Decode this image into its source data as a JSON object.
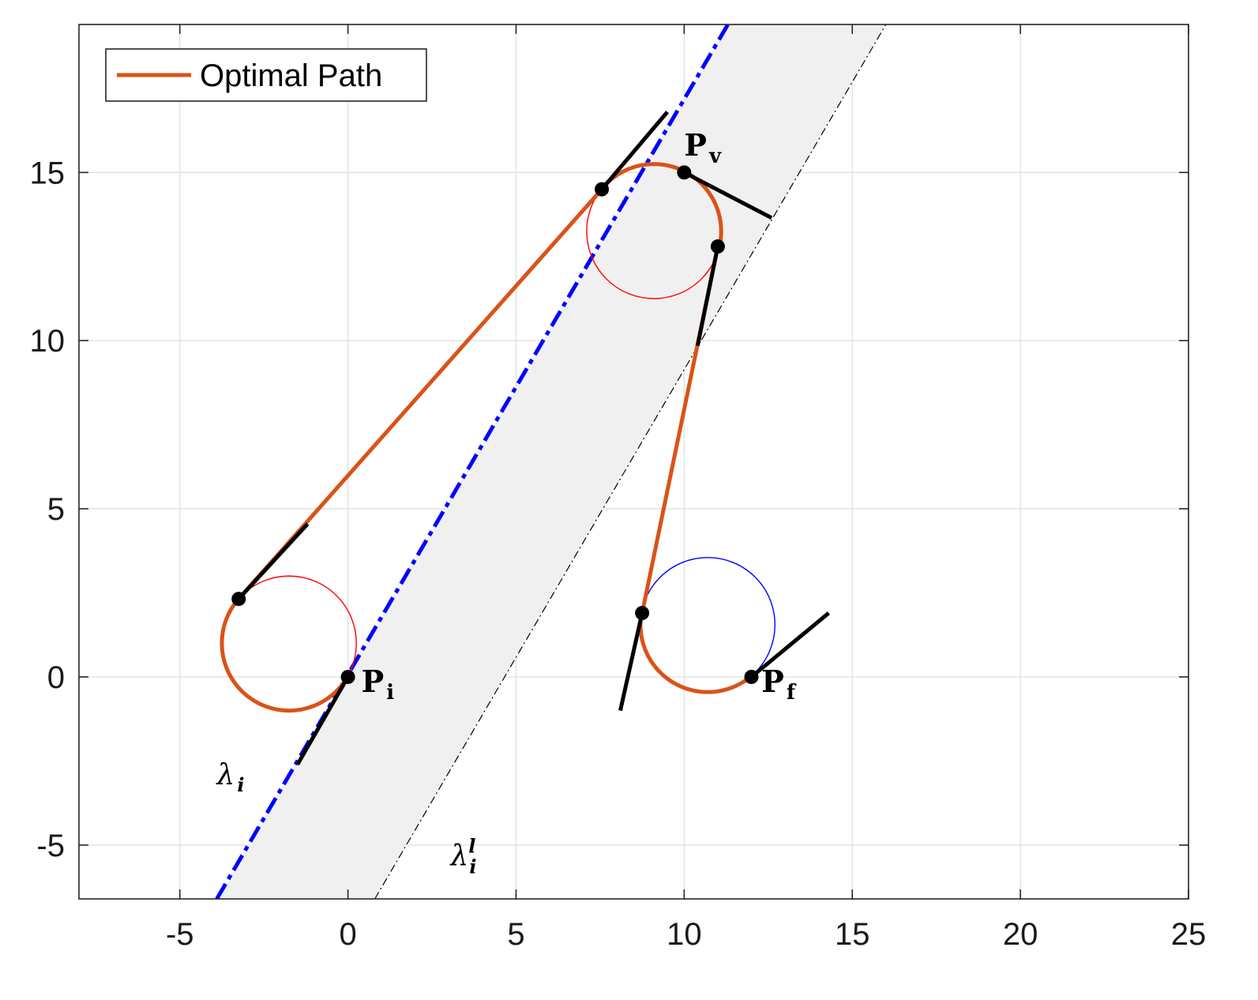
{
  "chart_data": {
    "type": "line",
    "title": "",
    "xlabel": "",
    "ylabel": "",
    "xlim": [
      -8,
      25
    ],
    "ylim": [
      -6.6,
      19.4
    ],
    "xticks": [
      -5,
      0,
      5,
      10,
      15,
      20,
      25
    ],
    "yticks": [
      -5,
      0,
      5,
      10,
      15
    ],
    "xtick_labels": [
      "-5",
      "0",
      "5",
      "10",
      "15",
      "20",
      "25"
    ],
    "ytick_labels": [
      "-5",
      "0",
      "5",
      "10",
      "15"
    ],
    "grid": true,
    "legend": {
      "placement": "top-left",
      "entries": [
        {
          "label": "Optimal Path",
          "color": "#D95319"
        }
      ]
    },
    "colors": {
      "optimal_path": "#D95319",
      "red_circle": "#FF0000",
      "blue_circle": "#0000FF",
      "blue_dashed_line": "#0000FF",
      "band_fill": "#F0F0F0",
      "segments": "#000000"
    },
    "series": [
      {
        "name": "Optimal Path",
        "style": "solid-thick",
        "pieces": [
          {
            "kind": "arc",
            "center": [
              -1.75,
              1.0
            ],
            "radius": 2.0,
            "from": [
              0.0,
              0.0
            ],
            "to": [
              -3.25,
              2.32
            ],
            "direction": "clockwise"
          },
          {
            "kind": "line",
            "x": [
              -3.25,
              7.55
            ],
            "y": [
              2.32,
              14.5
            ]
          },
          {
            "kind": "arc",
            "center": [
              9.1,
              13.25
            ],
            "radius": 2.0,
            "from": [
              7.55,
              14.5
            ],
            "to": [
              11.0,
              12.8
            ],
            "direction": "clockwise"
          },
          {
            "kind": "line",
            "x": [
              11.0,
              8.75
            ],
            "y": [
              12.8,
              1.9
            ]
          },
          {
            "kind": "arc",
            "center": [
              10.7,
              1.55
            ],
            "radius": 2.0,
            "from": [
              8.75,
              1.9
            ],
            "to": [
              12.0,
              0.0
            ],
            "direction": "counterclockwise"
          }
        ]
      }
    ],
    "circles": [
      {
        "color": "red",
        "center": [
          -1.75,
          1.0
        ],
        "radius": 2.0
      },
      {
        "color": "red",
        "center": [
          9.1,
          13.25
        ],
        "radius": 2.0
      },
      {
        "color": "blue",
        "center": [
          10.7,
          1.55
        ],
        "radius": 2.0
      }
    ],
    "lines": [
      {
        "name": "lambda_i",
        "style": "dash-dot-thick",
        "x": [
          -3.9,
          11.3
        ],
        "y": [
          -6.6,
          19.4
        ]
      },
      {
        "name": "lambda_i_l",
        "style": "dash-dot-thin",
        "x": [
          0.8,
          16.0
        ],
        "y": [
          -6.6,
          19.4
        ]
      }
    ],
    "band": {
      "left_line": "lambda_i",
      "right_line": "lambda_i_l"
    },
    "heading_segments": [
      {
        "x": [
          -1.5,
          0.0
        ],
        "y": [
          -2.6,
          0.0
        ]
      },
      {
        "x": [
          -3.25,
          -1.2
        ],
        "y": [
          2.32,
          4.55
        ]
      },
      {
        "x": [
          7.55,
          9.5
        ],
        "y": [
          14.5,
          16.8
        ]
      },
      {
        "x": [
          10.0,
          12.6
        ],
        "y": [
          15.0,
          13.65
        ]
      },
      {
        "x": [
          11.0,
          10.4
        ],
        "y": [
          12.8,
          9.85
        ]
      },
      {
        "x": [
          8.75,
          8.1
        ],
        "y": [
          1.9,
          -1.0
        ]
      },
      {
        "x": [
          12.0,
          14.3
        ],
        "y": [
          0.0,
          1.9
        ]
      }
    ],
    "points": [
      {
        "x": 0.0,
        "y": 0.0
      },
      {
        "x": -3.25,
        "y": 2.32
      },
      {
        "x": 7.55,
        "y": 14.5
      },
      {
        "x": 10.0,
        "y": 15.0
      },
      {
        "x": 11.0,
        "y": 12.8
      },
      {
        "x": 8.75,
        "y": 1.9
      },
      {
        "x": 12.0,
        "y": 0.0
      }
    ],
    "annotations": [
      {
        "base": "P",
        "sub": "i",
        "x": 0.4,
        "y": -0.45
      },
      {
        "base": "P",
        "sub": "v",
        "x": 10.0,
        "y": 15.5
      },
      {
        "base": "P",
        "sub": "f",
        "x": 12.3,
        "y": -0.45
      },
      {
        "base": "λ",
        "sub": "i",
        "x": -3.9,
        "y": -3.2
      },
      {
        "base": "λ",
        "sub": "i",
        "sup": "l",
        "x": 3.05,
        "y": -5.6
      }
    ]
  }
}
